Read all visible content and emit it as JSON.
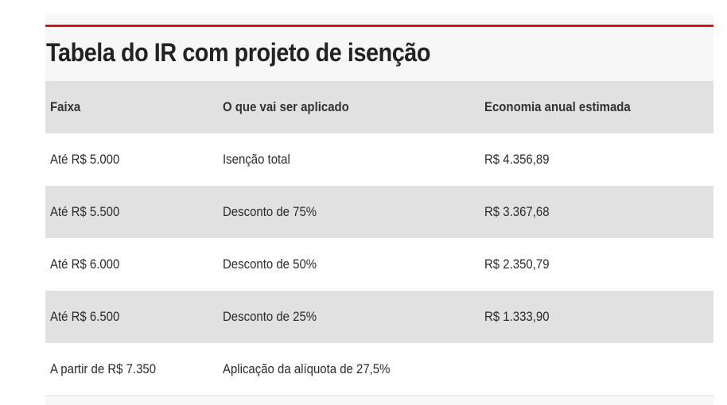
{
  "title": "Tabela do IR com projeto de isenção",
  "table": {
    "headers": [
      "Faixa",
      "O que vai ser aplicado",
      "Economia anual estimada"
    ],
    "rows": [
      [
        "Até R$ 5.000",
        "Isenção total",
        "R$ 4.356,89"
      ],
      [
        "Até R$ 5.500",
        "Desconto de 75%",
        "R$ 3.367,68"
      ],
      [
        "Até R$ 6.000",
        "Desconto de 50%",
        "R$ 2.350,79"
      ],
      [
        "Até R$ 6.500",
        "Desconto de 25%",
        "R$ 1.333,90"
      ],
      [
        "A partir de R$ 7.350",
        "Aplicação da alíquota de 27,5%",
        ""
      ]
    ]
  },
  "colors": {
    "accent": "#d7141a",
    "header_bg": "#e2e1e2",
    "stripe_bg": "#e2e1e2",
    "card_bg": "#f7f7f7"
  }
}
